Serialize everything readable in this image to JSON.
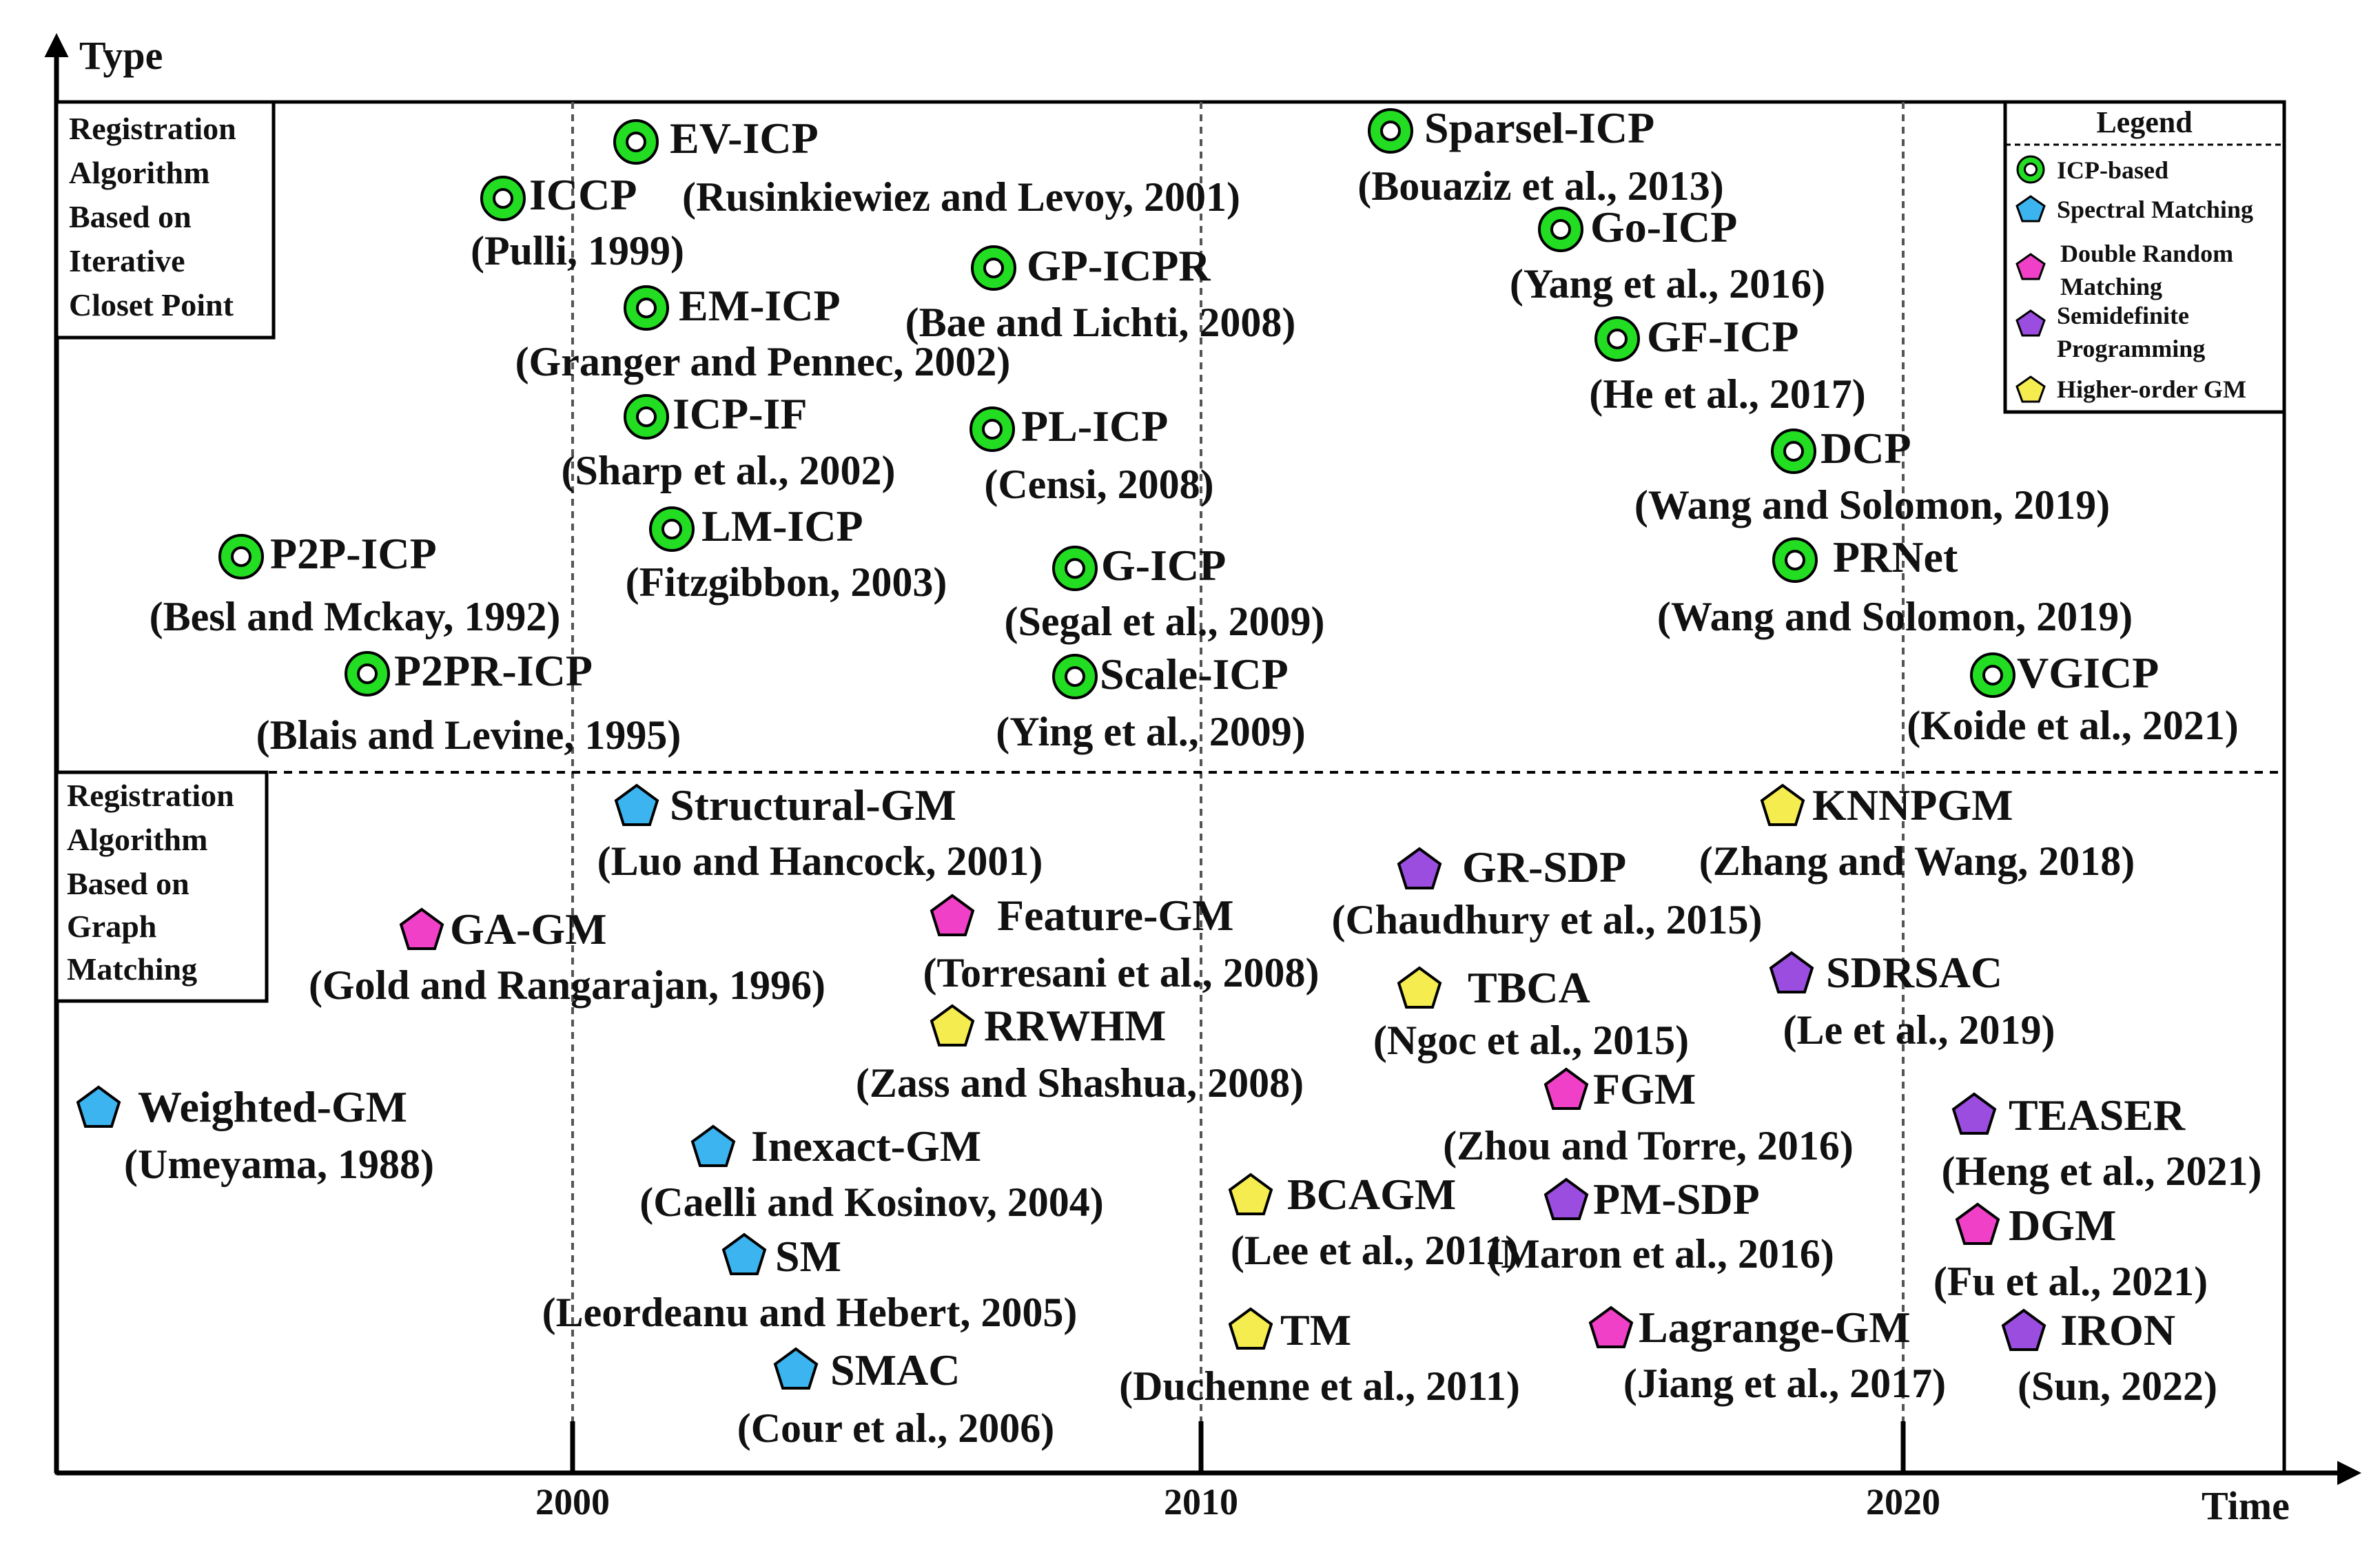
{
  "axes": {
    "y_label": "Type",
    "x_label": "Time",
    "ticks": [
      "2000",
      "2010",
      "2020"
    ]
  },
  "sections": {
    "top": [
      "Registration",
      "Algorithm",
      "Based on",
      "Iterative",
      "Closet Point"
    ],
    "bottom": [
      "Registration",
      "Algorithm",
      "Based on",
      "Graph",
      "Matching"
    ]
  },
  "legend": {
    "title": "Legend",
    "items": [
      {
        "shape": "ring",
        "color": "#22dd22",
        "lines": [
          "ICP-based"
        ]
      },
      {
        "shape": "pentagon",
        "color": "#3cb4f0",
        "lines": [
          "Spectral Matching"
        ]
      },
      {
        "shape": "pentagon",
        "color": "#f040c8",
        "lines": [
          "Double Random",
          "Matching"
        ]
      },
      {
        "shape": "pentagon",
        "color": "#9b4de0",
        "lines": [
          "Semidefinite",
          "Programming"
        ]
      },
      {
        "shape": "pentagon",
        "color": "#f5ec50",
        "lines": [
          "Higher-order GM"
        ]
      }
    ]
  },
  "methods": [
    {
      "id": "ev-icp",
      "name": "EV-ICP",
      "cite": "(Rusinkiewiez and Levoy, 2001)",
      "type": "icp"
    },
    {
      "id": "iccp",
      "name": "ICCP",
      "cite": "(Pulli, 1999)",
      "type": "icp"
    },
    {
      "id": "em-icp",
      "name": "EM-ICP",
      "cite": "(Granger and Pennec, 2002)",
      "type": "icp"
    },
    {
      "id": "gp-icpr",
      "name": "GP-ICPR",
      "cite": "(Bae and Lichti, 2008)",
      "type": "icp"
    },
    {
      "id": "icp-if",
      "name": "ICP-IF",
      "cite": "(Sharp et al., 2002)",
      "type": "icp"
    },
    {
      "id": "pl-icp",
      "name": "PL-ICP",
      "cite": "(Censi, 2008)",
      "type": "icp"
    },
    {
      "id": "lm-icp",
      "name": "LM-ICP",
      "cite": "(Fitzgibbon, 2003)",
      "type": "icp"
    },
    {
      "id": "p2p-icp",
      "name": "P2P-ICP",
      "cite": "(Besl and Mckay, 1992)",
      "type": "icp"
    },
    {
      "id": "p2pr-icp",
      "name": "P2PR-ICP",
      "cite": "(Blais and Levine, 1995)",
      "type": "icp"
    },
    {
      "id": "g-icp",
      "name": "G-ICP",
      "cite": "(Segal et al., 2009)",
      "type": "icp"
    },
    {
      "id": "scale-icp",
      "name": "Scale-ICP",
      "cite": "(Ying et al., 2009)",
      "type": "icp"
    },
    {
      "id": "sparsei-icp",
      "name": "Sparsel-ICP",
      "cite": "(Bouaziz et al., 2013)",
      "type": "icp"
    },
    {
      "id": "go-icp",
      "name": "Go-ICP",
      "cite": "(Yang et al., 2016)",
      "type": "icp"
    },
    {
      "id": "gf-icp",
      "name": "GF-ICP",
      "cite": "(He et al., 2017)",
      "type": "icp"
    },
    {
      "id": "dcp",
      "name": "DCP",
      "cite": "(Wang and Solomon, 2019)",
      "type": "icp"
    },
    {
      "id": "prnet",
      "name": "PRNet",
      "cite": "(Wang and Solomon, 2019)",
      "type": "icp"
    },
    {
      "id": "vgicp",
      "name": "VGICP",
      "cite": "(Koide et al., 2021)",
      "type": "icp"
    },
    {
      "id": "structural-gm",
      "name": "Structural-GM",
      "cite": "(Luo and Hancock, 2001)",
      "type": "spectral"
    },
    {
      "id": "ga-gm",
      "name": "GA-GM",
      "cite": "(Gold and Rangarajan, 1996)",
      "type": "double"
    },
    {
      "id": "feature-gm",
      "name": "Feature-GM",
      "cite": "(Torresani et al., 2008)",
      "type": "double"
    },
    {
      "id": "rrwhm",
      "name": "RRWHM",
      "cite": "(Zass and Shashua, 2008)",
      "type": "higher"
    },
    {
      "id": "weighted-gm",
      "name": "Weighted-GM",
      "cite": "(Umeyama, 1988)",
      "type": "spectral"
    },
    {
      "id": "inexact-gm",
      "name": "Inexact-GM",
      "cite": "(Caelli and Kosinov, 2004)",
      "type": "spectral"
    },
    {
      "id": "sm",
      "name": "SM",
      "cite": "(Leordeanu and Hebert, 2005)",
      "type": "spectral"
    },
    {
      "id": "smac",
      "name": "SMAC",
      "cite": "(Cour et al., 2006)",
      "type": "spectral"
    },
    {
      "id": "gr-sdp",
      "name": "GR-SDP",
      "cite": "(Chaudhury et al., 2015)",
      "type": "semidef"
    },
    {
      "id": "tbca",
      "name": "TBCA",
      "cite": "(Ngoc et al., 2015)",
      "type": "higher"
    },
    {
      "id": "knnpgm",
      "name": "KNNPGM",
      "cite": "(Zhang and Wang, 2018)",
      "type": "higher"
    },
    {
      "id": "sdrsac",
      "name": "SDRSAC",
      "cite": "(Le et al., 2019)",
      "type": "semidef"
    },
    {
      "id": "fgm",
      "name": "FGM",
      "cite": "(Zhou and Torre, 2016)",
      "type": "double"
    },
    {
      "id": "bcagm",
      "name": "BCAGM",
      "cite": "(Lee et al., 2011)",
      "type": "higher"
    },
    {
      "id": "pm-sdp",
      "name": "PM-SDP",
      "cite": "(Maron et al., 2016)",
      "type": "semidef"
    },
    {
      "id": "teaser",
      "name": "TEASER",
      "cite": "(Heng et al., 2021)",
      "type": "semidef"
    },
    {
      "id": "dgm",
      "name": "DGM",
      "cite": "(Fu et al., 2021)",
      "type": "double"
    },
    {
      "id": "tm",
      "name": "TM",
      "cite": "(Duchenne et al., 2011)",
      "type": "higher"
    },
    {
      "id": "lagrange-gm",
      "name": "Lagrange-GM",
      "cite": "(Jiang et al., 2017)",
      "type": "double"
    },
    {
      "id": "iron",
      "name": "IRON",
      "cite": "(Sun, 2022)",
      "type": "semidef"
    }
  ]
}
